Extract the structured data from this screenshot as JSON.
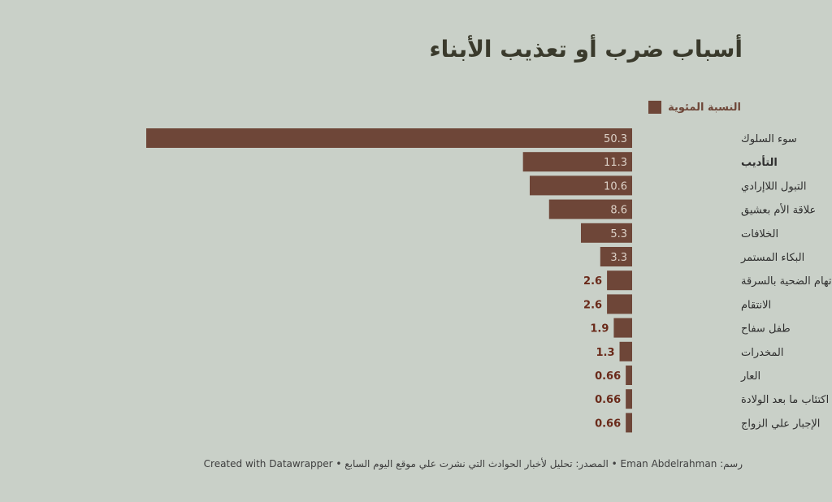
{
  "title": "أسباب ضرب أو تعذيب الأبناء",
  "legend": {
    "label": "النسبة المئوية",
    "color": "#6e4638"
  },
  "footer": "رسم: Eman Abdelrahman • المصدر: تحليل لأخبار الحوادث التي نشرت علي موقع اليوم السابع • Created with Datawrapper",
  "colors": {
    "bar": "#6e4638",
    "background": "#c9d0c8",
    "inner_label": "#ddd2c8",
    "outer_label": "#6a2a1a",
    "category_label": "#2e2e2e"
  },
  "chart_data": {
    "type": "bar",
    "orientation": "horizontal",
    "direction": "right-to-left",
    "title": "أسباب ضرب أو تعذيب الأبناء",
    "xlim": [
      0,
      50.3
    ],
    "grid": false,
    "legend_position": "top-right",
    "categories": [
      "سوء السلوك",
      "التأديب",
      "التبول اللاإرادي",
      "علاقة الأم بعشيق",
      "الخلافات",
      "البكاء المستمر",
      "إتهام الضحية بالسرقة",
      "الانتقام",
      "طفل سفاح",
      "المخدرات",
      "العار",
      "اكتئاب ما بعد الولادة",
      "الإجبار علي الزواج"
    ],
    "bold_categories": [
      "التأديب"
    ],
    "series": [
      {
        "name": "النسبة المئوية",
        "values": [
          50.3,
          11.3,
          10.6,
          8.6,
          5.3,
          3.3,
          2.6,
          2.6,
          1.9,
          1.3,
          0.66,
          0.66,
          0.66
        ],
        "labels": [
          "50.3",
          "11.3",
          "10.6",
          "8.6",
          "5.3",
          "3.3",
          "2.6",
          "2.6",
          "1.9",
          "1.3",
          "0.66",
          "0.66",
          "0.66"
        ]
      }
    ]
  }
}
